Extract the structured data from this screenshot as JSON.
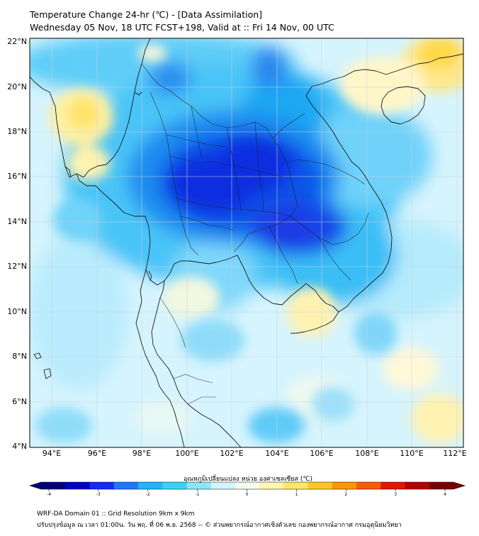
{
  "title": {
    "line1": "Temperature Change 24-hr (℃) - [Data Assimilation]",
    "line2": "Wednesday 05 Nov, 18 UTC FCST+198, Valid at :: Fri 14 Nov, 00 UTC"
  },
  "axes": {
    "lat_labels": [
      "22°N",
      "20°N",
      "18°N",
      "16°N",
      "14°N",
      "12°N",
      "10°N",
      "8°N",
      "6°N",
      "4°N"
    ],
    "lon_labels": [
      "94°E",
      "96°E",
      "98°E",
      "100°E",
      "102°E",
      "104°E",
      "106°E",
      "108°E",
      "110°E",
      "112°E"
    ]
  },
  "colorbar": {
    "title": "อุณหภูมิเปลี่ยนแปลง หน่วย องศาเซลเซียส (℃)",
    "ticks": [
      "-4",
      "-3",
      "-2",
      "-1",
      "0",
      "1",
      "2",
      "3",
      "4"
    ],
    "colors": [
      "#00007a",
      "#0000c8",
      "#1428ff",
      "#1e78ff",
      "#23b4ff",
      "#37d2f5",
      "#8ce6fa",
      "#d2f5ff",
      "#f5fff0",
      "#fff5b4",
      "#ffe664",
      "#ffc81e",
      "#ff9600",
      "#ff5a00",
      "#e61400",
      "#b40000",
      "#780000"
    ]
  },
  "footer": {
    "line1": "WRF-DA Domain 01 :: Grid Resolution 9km x 9km",
    "line2": "ปรับปรุงข้อมูล ณ เวลา 01:00น. วัน พฤ. ที่ 06 พ.ย. 2568 -- © ส่วนพยากรณ์อากาศเชิงตัวเลข กองพยากรณ์อากาศ กรมอุตุนิยมวิทยา"
  }
}
